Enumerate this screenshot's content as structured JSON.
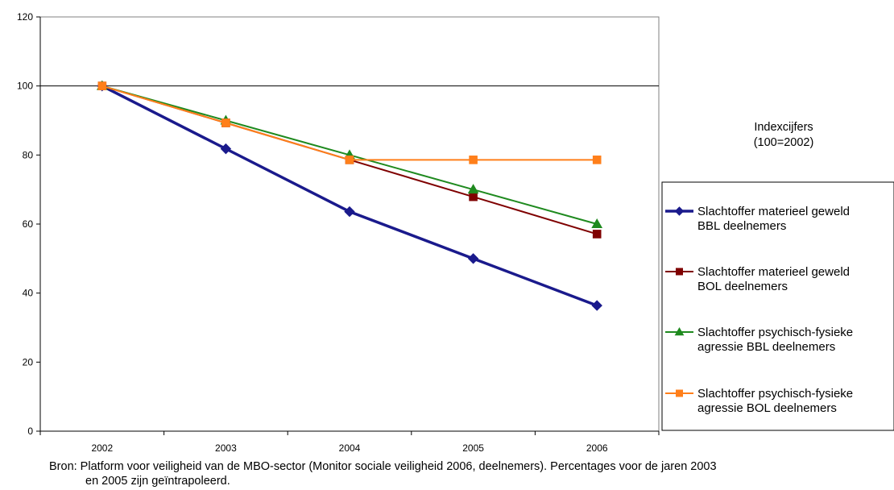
{
  "chart_data": {
    "type": "line",
    "categories": [
      "2002",
      "2003",
      "2004",
      "2005",
      "2006"
    ],
    "series": [
      {
        "name_lines": [
          "Slachtoffer materieel geweld",
          "BBL deelnemers"
        ],
        "values": [
          100,
          81.8,
          63.6,
          50,
          36.4
        ],
        "color": "#1a1a8c",
        "marker": "diamond"
      },
      {
        "name_lines": [
          "Slachtoffer materieel geweld",
          "BOL deelnemers"
        ],
        "values": [
          100,
          89.3,
          78.6,
          67.9,
          57.1
        ],
        "color": "#7f0000",
        "marker": "square"
      },
      {
        "name_lines": [
          "Slachtoffer psychisch-fysieke",
          "agressie BBL deelnemers"
        ],
        "values": [
          100,
          90,
          80,
          70,
          60
        ],
        "color": "#1f8a1f",
        "marker": "triangle"
      },
      {
        "name_lines": [
          "Slachtoffer psychisch-fysieke",
          "agressie BOL deelnemers"
        ],
        "values": [
          100,
          89.3,
          78.6,
          78.6,
          78.6
        ],
        "color": "#ff7f1a",
        "marker": "square"
      }
    ],
    "y_ticks": [
      "0",
      "20",
      "40",
      "60",
      "80",
      "100",
      "120"
    ],
    "ylim": [
      0,
      120
    ],
    "grid": "horizontal line at 100",
    "legend_position": "right",
    "annotation_lines": [
      "Indexcijfers",
      "(100=2002)"
    ]
  },
  "source_lines": [
    "Bron:  Platform voor veiligheid van de MBO-sector (Monitor sociale veiligheid 2006, deelnemers). Percentages voor de jaren 2003",
    "en 2005 zijn geïntrapoleerd."
  ]
}
